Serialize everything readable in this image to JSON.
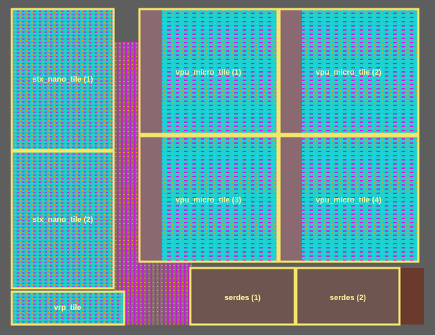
{
  "blocks": [
    {
      "label": "stx_nano_tile (1)"
    },
    {
      "label": "stx_nano_tile (2)"
    },
    {
      "label": "vrp_tile"
    },
    {
      "label": "vpu_micro_tile (1)"
    },
    {
      "label": "vpu_micro_tile (2)"
    },
    {
      "label": "vpu_micro_tile (3)"
    },
    {
      "label": "vpu_micro_tile (4)"
    },
    {
      "label": "serdes (1)"
    },
    {
      "label": "serdes (2)"
    }
  ]
}
